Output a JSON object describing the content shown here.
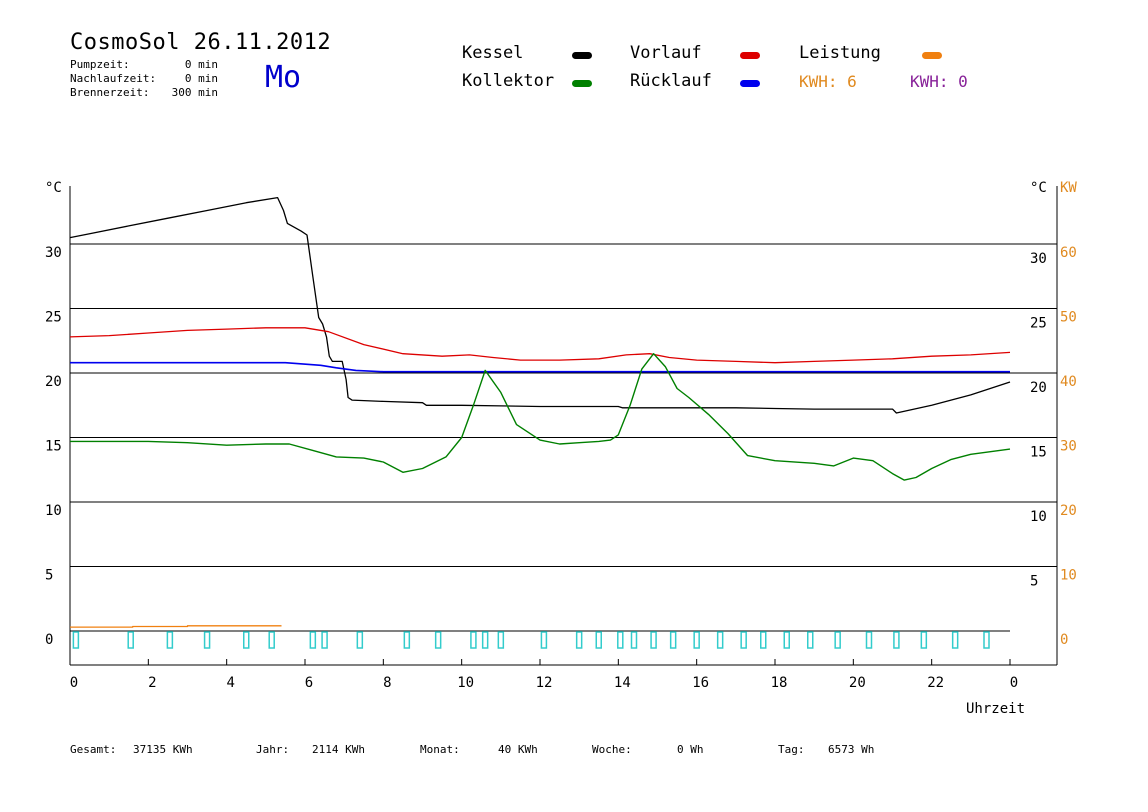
{
  "header": {
    "title": "CosmoSol 26.11.2012",
    "weekday": "Mo",
    "info": [
      {
        "label": "Pumpzeit:",
        "value": "0 min"
      },
      {
        "label": "Nachlaufzeit:",
        "value": "0 min"
      },
      {
        "label": "Brennerzeit:",
        "value": "300 min"
      }
    ]
  },
  "legend": {
    "items": [
      {
        "label": "Kessel",
        "color": "#000000"
      },
      {
        "label": "Vorlauf",
        "color": "#dd0000"
      },
      {
        "label": "Leistung",
        "color": "#f08010"
      },
      {
        "label": "Kollektor",
        "color": "#008000"
      },
      {
        "label": "Rücklauf",
        "color": "#0000ee"
      }
    ],
    "kwh1": "KWH: 6",
    "kwh2": "KWH: 0",
    "kwh1_color": "#e08a20",
    "kwh2_color": "#882299"
  },
  "axis": {
    "left_unit": "°C",
    "right_unit_c": "°C",
    "right_unit_kw": "KW",
    "x_label": "Uhrzeit",
    "left_ticks": [
      "30",
      "25",
      "20",
      "15",
      "10",
      "5",
      "0"
    ],
    "right_c_ticks": [
      "30",
      "25",
      "20",
      "15",
      "10",
      "5"
    ],
    "right_kw_ticks": [
      "60",
      "50",
      "40",
      "30",
      "20",
      "10",
      "0"
    ],
    "x_ticks": [
      "0",
      "2",
      "4",
      "6",
      "8",
      "10",
      "12",
      "14",
      "16",
      "18",
      "20",
      "22",
      "0"
    ]
  },
  "footer": [
    {
      "label": "Gesamt:",
      "value": "37135 KWh"
    },
    {
      "label": "Jahr:",
      "value": "2114 KWh"
    },
    {
      "label": "Monat:",
      "value": "40 KWh"
    },
    {
      "label": "Woche:",
      "value": "0 Wh"
    },
    {
      "label": "Tag:",
      "value": "6573 Wh"
    }
  ],
  "chart_data": {
    "type": "line",
    "x_unit": "hour of day",
    "xlim": [
      0,
      24
    ],
    "ylim_left_celsius": [
      0,
      35
    ],
    "ylim_right_kw": [
      0,
      70
    ],
    "grid": true,
    "series": [
      {
        "name": "Kessel",
        "color": "#000000",
        "axis": "celsius",
        "x": [
          0,
          0.5,
          1.5,
          2.5,
          3.5,
          4.5,
          5.3,
          5.45,
          5.55,
          5.9,
          6.05,
          6.2,
          6.35,
          6.45,
          6.55,
          6.62,
          6.7,
          6.85,
          6.95,
          7.05,
          7.1,
          7.2,
          8.0,
          9.0,
          9.1,
          10.0,
          11.0,
          12.0,
          13.0,
          14.0,
          14.1,
          15.0,
          16.0,
          17.0,
          18.0,
          19.0,
          20.0,
          21.0,
          21.1,
          22.0,
          23.0,
          24.0
        ],
        "y": [
          30.5,
          30.8,
          31.4,
          32.0,
          32.6,
          33.2,
          33.6,
          32.6,
          31.6,
          31.0,
          30.7,
          27.5,
          24.3,
          23.8,
          22.8,
          21.3,
          20.9,
          20.9,
          20.9,
          19.5,
          18.1,
          17.9,
          17.8,
          17.7,
          17.5,
          17.5,
          17.45,
          17.4,
          17.4,
          17.4,
          17.3,
          17.3,
          17.3,
          17.3,
          17.25,
          17.2,
          17.2,
          17.2,
          16.9,
          17.5,
          18.3,
          19.3
        ]
      },
      {
        "name": "Vorlauf",
        "color": "#dd0000",
        "axis": "celsius",
        "x": [
          0,
          1,
          2,
          3,
          4,
          5,
          6,
          6.6,
          7.5,
          8.5,
          9.5,
          10.2,
          10.8,
          11.5,
          12.5,
          13.5,
          14.2,
          14.8,
          15.3,
          16.0,
          17.0,
          18.0,
          19.0,
          20.0,
          21.0,
          22.0,
          23.0,
          24.0
        ],
        "y": [
          22.8,
          22.9,
          23.1,
          23.3,
          23.4,
          23.5,
          23.5,
          23.2,
          22.2,
          21.5,
          21.3,
          21.4,
          21.2,
          21.0,
          21.0,
          21.1,
          21.4,
          21.5,
          21.2,
          21.0,
          20.9,
          20.8,
          20.9,
          21.0,
          21.1,
          21.3,
          21.4,
          21.6
        ]
      },
      {
        "name": "Rücklauf",
        "color": "#0000ee",
        "axis": "celsius",
        "x": [
          0,
          2,
          4,
          5.5,
          6.4,
          6.8,
          7.3,
          8,
          10,
          12,
          14,
          15,
          16,
          18,
          20,
          22,
          24
        ],
        "y": [
          20.8,
          20.8,
          20.8,
          20.8,
          20.6,
          20.4,
          20.2,
          20.1,
          20.1,
          20.1,
          20.1,
          20.1,
          20.1,
          20.1,
          20.1,
          20.1,
          20.1
        ]
      },
      {
        "name": "Kollektor",
        "color": "#008000",
        "axis": "celsius",
        "x": [
          0,
          1,
          2,
          3,
          4,
          5,
          5.6,
          6.2,
          6.8,
          7.5,
          8.0,
          8.5,
          9.0,
          9.6,
          10.0,
          10.3,
          10.6,
          11.0,
          11.4,
          12.0,
          12.5,
          13.0,
          13.5,
          13.8,
          14.0,
          14.3,
          14.6,
          14.9,
          15.2,
          15.5,
          15.8,
          16.3,
          16.8,
          17.3,
          18.0,
          19.0,
          19.5,
          20.0,
          20.5,
          21.0,
          21.3,
          21.6,
          22.0,
          22.5,
          23.0,
          24.0
        ],
        "y": [
          14.7,
          14.7,
          14.7,
          14.6,
          14.4,
          14.5,
          14.5,
          14.0,
          13.5,
          13.4,
          13.1,
          12.3,
          12.6,
          13.5,
          15.0,
          17.5,
          20.2,
          18.5,
          16.0,
          14.8,
          14.5,
          14.6,
          14.7,
          14.8,
          15.2,
          17.5,
          20.3,
          21.5,
          20.5,
          18.8,
          18.1,
          16.8,
          15.3,
          13.6,
          13.2,
          13.0,
          12.8,
          13.4,
          13.2,
          12.2,
          11.7,
          11.9,
          12.6,
          13.3,
          13.7,
          14.1
        ]
      },
      {
        "name": "Leistung",
        "color": "#f08010",
        "axis": "kw",
        "x": [
          0,
          1.6,
          1.6,
          3.0,
          3.0,
          5.4
        ],
        "y": [
          0.6,
          0.6,
          0.7,
          0.7,
          0.8,
          0.8
        ]
      }
    ],
    "pump_pulses_hours": [
      0.15,
      1.55,
      2.55,
      3.5,
      4.5,
      5.15,
      6.2,
      6.5,
      7.4,
      8.6,
      9.4,
      10.3,
      10.6,
      11.0,
      12.1,
      13.0,
      13.5,
      14.05,
      14.4,
      14.9,
      15.4,
      16.0,
      16.6,
      17.2,
      17.7,
      18.3,
      18.9,
      19.6,
      20.4,
      21.1,
      21.8,
      22.6,
      23.4
    ],
    "pump_pulse_color": "#33cccc"
  }
}
